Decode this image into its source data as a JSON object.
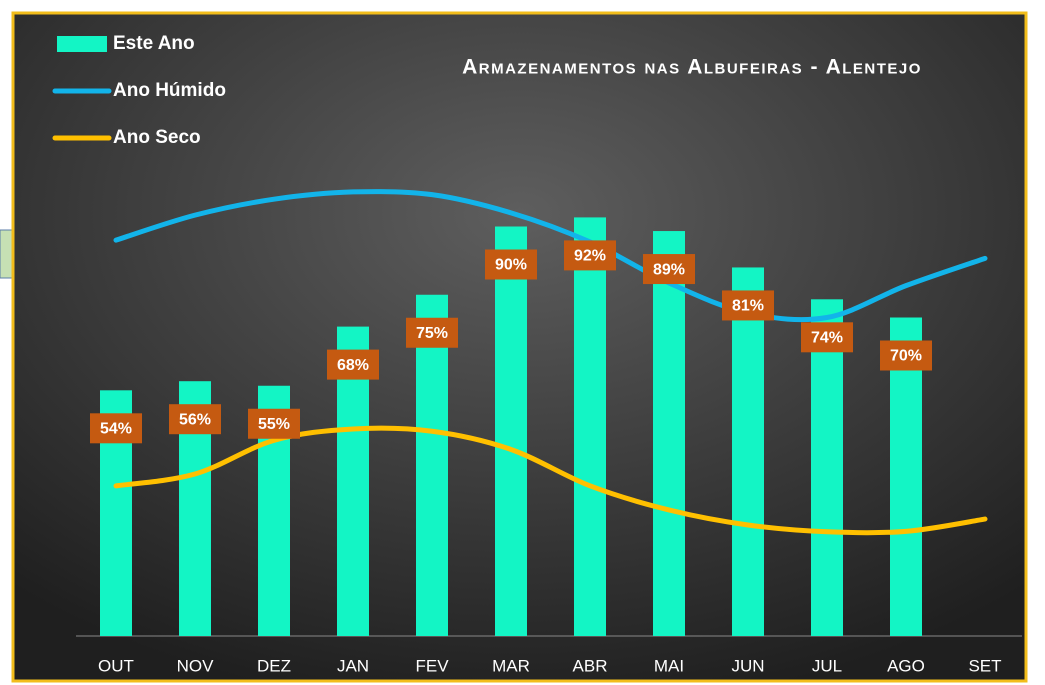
{
  "chart_data": {
    "type": "bar-line",
    "title": "Armazenamentos nas Albufeiras - Alentejo",
    "categories": [
      "OUT",
      "NOV",
      "DEZ",
      "JAN",
      "FEV",
      "MAR",
      "ABR",
      "MAI",
      "JUN",
      "JUL",
      "AGO",
      "SET"
    ],
    "ylim": [
      0,
      100
    ],
    "series": [
      {
        "name": "Este Ano",
        "type": "bar",
        "color": "#13f5c5",
        "values": [
          54,
          56,
          55,
          68,
          75,
          90,
          92,
          89,
          81,
          74,
          70,
          null
        ],
        "value_labels": [
          "54%",
          "56%",
          "55%",
          "68%",
          "75%",
          "90%",
          "92%",
          "89%",
          "81%",
          "74%",
          "70%",
          null
        ]
      },
      {
        "name": "Ano Húmido",
        "type": "line",
        "color": "#12b4ea",
        "values": [
          87,
          92.5,
          96,
          97.6,
          97,
          93,
          86.6,
          77.6,
          71,
          70,
          77,
          83
        ]
      },
      {
        "name": "Ano Seco",
        "type": "line",
        "color": "#ffc000",
        "values": [
          33,
          35.6,
          43,
          45.5,
          45,
          41,
          33,
          27.7,
          24.4,
          22.9,
          23,
          25.7
        ]
      }
    ],
    "label_color": "#c55a11"
  }
}
